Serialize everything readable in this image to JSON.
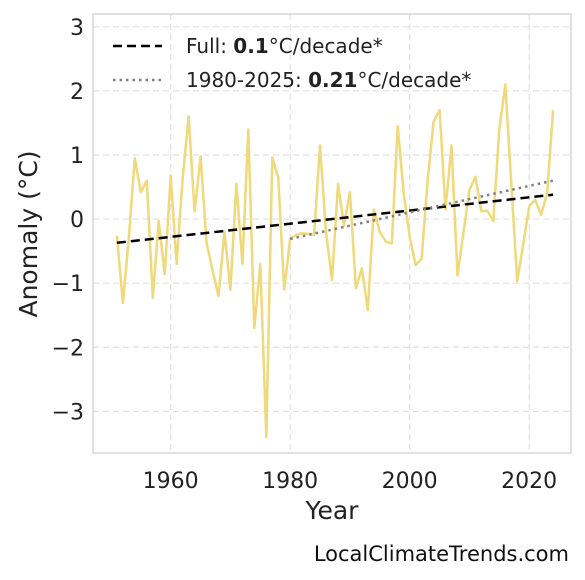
{
  "chart_data": {
    "type": "line",
    "xlabel": "Year",
    "ylabel": "Anomaly (°C)",
    "xlim": [
      1947,
      2027
    ],
    "ylim": [
      -3.65,
      3.2
    ],
    "x_ticks": [
      1960,
      1980,
      2000,
      2020
    ],
    "y_ticks": [
      -3,
      -2,
      -1,
      0,
      1,
      2,
      3
    ],
    "y_tick_labels": [
      "−3",
      "−2",
      "−1",
      "0",
      "1",
      "2",
      "3"
    ],
    "grid": true,
    "legend_position": "top-left",
    "series": [
      {
        "kind": "anomaly",
        "color": "#f0d97a",
        "x": [
          1951,
          1952,
          1953,
          1954,
          1955,
          1956,
          1957,
          1958,
          1959,
          1960,
          1961,
          1962,
          1963,
          1964,
          1965,
          1966,
          1967,
          1968,
          1969,
          1970,
          1971,
          1972,
          1973,
          1974,
          1975,
          1976,
          1977,
          1978,
          1979,
          1980,
          1981,
          1982,
          1983,
          1984,
          1985,
          1986,
          1987,
          1988,
          1989,
          1990,
          1991,
          1992,
          1993,
          1994,
          1995,
          1996,
          1997,
          1998,
          1999,
          2000,
          2001,
          2002,
          2003,
          2004,
          2005,
          2006,
          2007,
          2008,
          2009,
          2010,
          2011,
          2012,
          2013,
          2014,
          2015,
          2016,
          2017,
          2018,
          2019,
          2020,
          2021,
          2022,
          2023,
          2024
        ],
        "values": [
          -0.26,
          -1.31,
          -0.3,
          0.95,
          0.42,
          0.6,
          -1.23,
          -0.03,
          -0.86,
          0.68,
          -0.7,
          0.62,
          1.6,
          0.12,
          0.98,
          -0.36,
          -0.8,
          -1.2,
          -0.2,
          -1.1,
          0.55,
          -0.7,
          1.4,
          -1.7,
          -0.7,
          -3.4,
          0.96,
          0.65,
          -1.1,
          -0.3,
          -0.25,
          -0.22,
          -0.23,
          -0.25,
          1.15,
          -0.2,
          -0.95,
          0.55,
          -0.1,
          0.42,
          -1.08,
          -0.77,
          -1.42,
          0.15,
          -0.2,
          -0.35,
          -0.38,
          1.45,
          0.4,
          -0.28,
          -0.72,
          -0.62,
          0.6,
          1.52,
          1.7,
          0.15,
          1.15,
          -0.88,
          -0.22,
          0.45,
          0.66,
          0.12,
          0.13,
          -0.03,
          1.4,
          2.1,
          0.55,
          -0.97,
          -0.4,
          0.2,
          0.3,
          0.07,
          0.4,
          1.7
        ]
      },
      {
        "name": "Full",
        "kind": "trend",
        "style": "dashed",
        "color": "#000000",
        "x": [
          1951,
          2024
        ],
        "values": [
          -0.37,
          0.38
        ]
      },
      {
        "name": "1980-2025",
        "kind": "trend",
        "style": "dotted",
        "color": "#808080",
        "x": [
          1980,
          2024
        ],
        "values": [
          -0.31,
          0.6
        ]
      }
    ],
    "legend": [
      {
        "prefix": "Full: ",
        "value": "0.1",
        "suffix": "°C/decade*"
      },
      {
        "prefix": "1980-2025: ",
        "value": "0.21",
        "suffix": "°C/decade*"
      }
    ]
  },
  "footer": {
    "credit": "LocalClimateTrends.com"
  }
}
